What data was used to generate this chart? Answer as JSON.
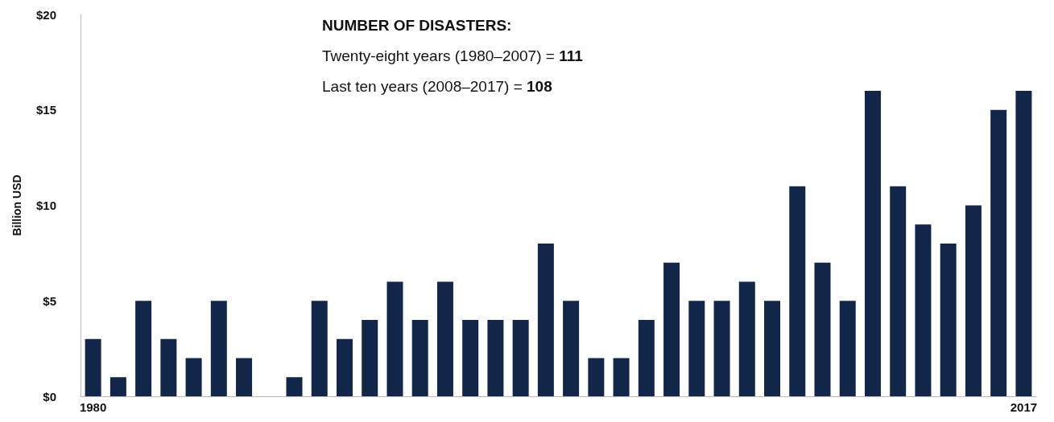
{
  "chart_data": {
    "type": "bar",
    "ylabel": "Billion USD",
    "categories": [
      "1980",
      null,
      null,
      null,
      null,
      null,
      null,
      null,
      null,
      null,
      null,
      null,
      null,
      null,
      null,
      null,
      null,
      null,
      null,
      null,
      null,
      null,
      null,
      null,
      null,
      null,
      null,
      null,
      null,
      null,
      null,
      null,
      null,
      null,
      null,
      null,
      null,
      "2017"
    ],
    "values": [
      3,
      1,
      5,
      3,
      2,
      5,
      2,
      0,
      1,
      5,
      3,
      4,
      6,
      4,
      6,
      4,
      4,
      4,
      8,
      5,
      2,
      2,
      4,
      7,
      5,
      5,
      6,
      5,
      11,
      7,
      5,
      16,
      11,
      9,
      8,
      10,
      15,
      16
    ],
    "color": "#12264a",
    "ylim": [
      0,
      20
    ],
    "yticks": [
      {
        "value": 0,
        "label": "$0"
      },
      {
        "value": 5,
        "label": "$5"
      },
      {
        "value": 10,
        "label": "$10"
      },
      {
        "value": 15,
        "label": "$15"
      },
      {
        "value": 20,
        "label": "$20"
      }
    ],
    "grid": false,
    "annotations": [
      "NUMBER OF DISASTERS:",
      "Twenty-eight years (1980–2007) = 111",
      "Last ten years (2008–2017) = 108"
    ]
  }
}
